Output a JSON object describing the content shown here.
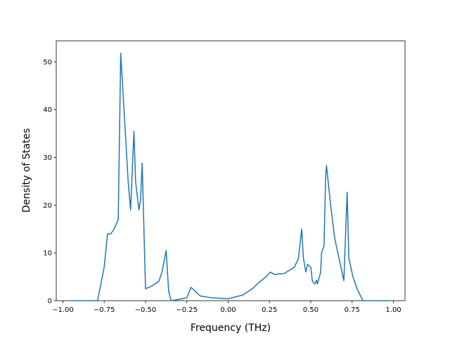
{
  "chart_data": {
    "type": "line",
    "x_label": "Frequency (THz)",
    "y_label": "Density of States",
    "xlim": [
      -1.04,
      1.07
    ],
    "ylim": [
      0,
      54.4
    ],
    "xticks": [
      {
        "value": -1.0,
        "label": "−1.00"
      },
      {
        "value": -0.75,
        "label": "−0.75"
      },
      {
        "value": -0.5,
        "label": "−0.50"
      },
      {
        "value": -0.25,
        "label": "−0.25"
      },
      {
        "value": 0,
        "label": "0.00"
      },
      {
        "value": 0.25,
        "label": "0.25"
      },
      {
        "value": 0.5,
        "label": "0.50"
      },
      {
        "value": 0.75,
        "label": "0.75"
      },
      {
        "value": 1.0,
        "label": "1.00"
      }
    ],
    "yticks": [
      0,
      10,
      20,
      30,
      40,
      50
    ],
    "series": [
      {
        "color": "#1f77b4",
        "x": [
          -0.95,
          -0.79,
          -0.77,
          -0.75,
          -0.73,
          -0.71,
          -0.69,
          -0.665,
          -0.65,
          -0.635,
          -0.62,
          -0.605,
          -0.59,
          -0.57,
          -0.56,
          -0.54,
          -0.53,
          -0.52,
          -0.5,
          -0.465,
          -0.42,
          -0.4,
          -0.375,
          -0.36,
          -0.345,
          -0.295,
          -0.25,
          -0.225,
          -0.2,
          -0.17,
          -0.1,
          0,
          0.09,
          0.15,
          0.185,
          0.23,
          0.255,
          0.28,
          0.34,
          0.4,
          0.425,
          0.445,
          0.455,
          0.47,
          0.48,
          0.5,
          0.51,
          0.525,
          0.535,
          0.54,
          0.56,
          0.565,
          0.58,
          0.59,
          0.595,
          0.62,
          0.645,
          0.67,
          0.7,
          0.72,
          0.73,
          0.755,
          0.78,
          0.815,
          0.98
        ],
        "values": [
          0,
          0,
          3.5,
          7,
          14,
          14,
          15,
          17,
          51.8,
          43,
          34,
          25,
          19,
          35.5,
          25,
          19,
          21,
          28.8,
          2.5,
          3,
          4,
          6,
          10.5,
          2,
          0,
          0.3,
          0.6,
          2.8,
          2,
          1,
          0.6,
          0.4,
          1.2,
          2.6,
          3.8,
          5,
          6,
          5.5,
          5.7,
          7,
          8.8,
          15,
          9,
          6,
          7.6,
          7,
          4,
          3.5,
          4.3,
          3.5,
          6,
          10,
          11.5,
          26,
          28.3,
          20,
          13,
          9,
          4.2,
          22.7,
          9,
          5,
          2.5,
          0,
          0
        ]
      }
    ]
  }
}
